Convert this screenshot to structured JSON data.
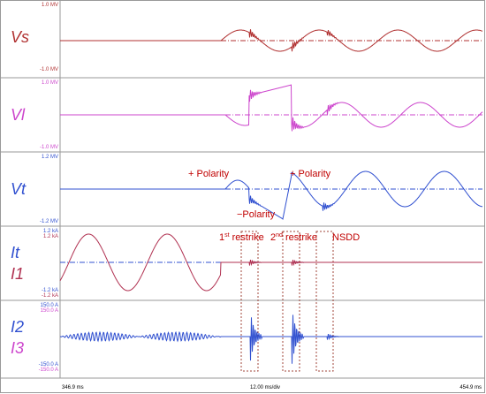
{
  "panels": [
    {
      "labels": [
        {
          "text": "Vs"
        }
      ],
      "scale_top": [
        "1.0 MV"
      ],
      "scale_bottom": [
        "-1.0 MV"
      ]
    },
    {
      "labels": [
        {
          "text": "Vl"
        }
      ],
      "scale_top": [
        "1.0 MV"
      ],
      "scale_bottom": [
        "-1.0 MV"
      ]
    },
    {
      "labels": [
        {
          "text": "Vt"
        }
      ],
      "scale_top": [
        "1.2 MV"
      ],
      "scale_bottom": [
        "-1.2 MV"
      ]
    },
    {
      "labels": [
        {
          "text": "It"
        },
        {
          "text": "I1"
        }
      ],
      "scale_top": [
        "1.2 kA",
        "1.2 kA"
      ],
      "scale_bottom": [
        "-1.2 kA",
        "-1.2 kA"
      ]
    },
    {
      "labels": [
        {
          "text": "I2"
        },
        {
          "text": "I3"
        }
      ],
      "scale_top": [
        "150.0 A",
        "150.0 A"
      ],
      "scale_bottom": [
        "-150.0 A",
        "-150.0 A"
      ]
    }
  ],
  "annotations": {
    "polarity": [
      "+ Polarity",
      "+ Polarity",
      "−Polarity"
    ],
    "events": [
      {
        "pre": "1",
        "sup": "st",
        "post": " restrike"
      },
      {
        "pre": "2",
        "sup": "nd",
        "post": " restrike"
      },
      {
        "pre": "NSDD"
      }
    ]
  },
  "time_axis": {
    "start": "346.9 ms",
    "division": "12.00 ms/div",
    "end": "454.9 ms"
  }
}
